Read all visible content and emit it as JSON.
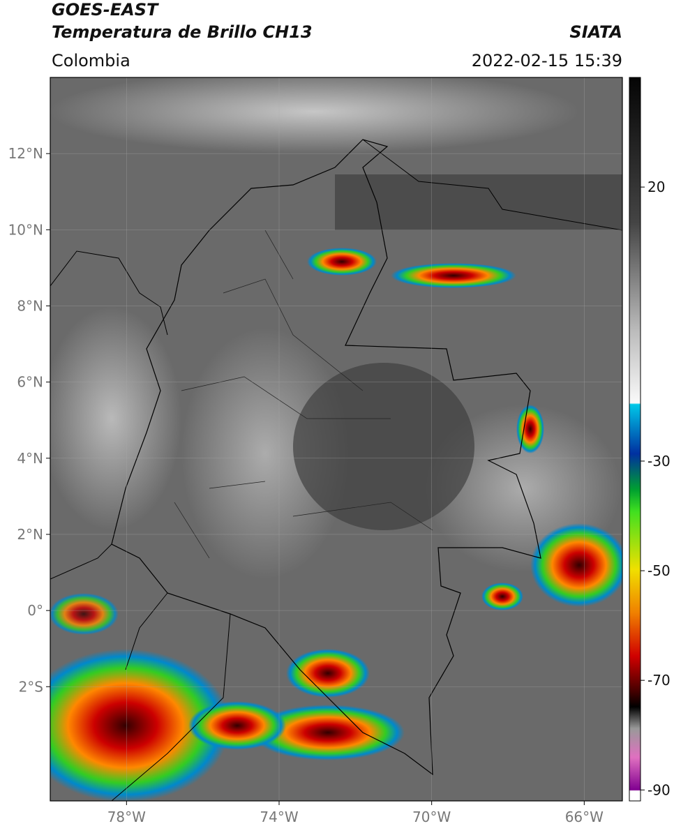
{
  "header": {
    "title_line_1": "GOES-EAST",
    "title_line_2": "Temperatura de Brillo CH13",
    "region": "Colombia",
    "source": "SIATA",
    "datetime": "2022-02-15 15:39"
  },
  "map": {
    "lonlim": [
      -80,
      -65
    ],
    "latlim": [
      -5,
      14
    ],
    "lon_ticks": [
      {
        "value": -78,
        "label": "78°W"
      },
      {
        "value": -74,
        "label": "74°W"
      },
      {
        "value": -70,
        "label": "70°W"
      },
      {
        "value": -66,
        "label": "66°W"
      }
    ],
    "lat_ticks": [
      {
        "value": 12,
        "label": "12°N"
      },
      {
        "value": 10,
        "label": "10°N"
      },
      {
        "value": 8,
        "label": "8°N"
      },
      {
        "value": 6,
        "label": "6°N"
      },
      {
        "value": 4,
        "label": "4°N"
      },
      {
        "value": 2,
        "label": "2°N"
      },
      {
        "value": 0,
        "label": "0°"
      },
      {
        "value": -2,
        "label": "2°S"
      }
    ],
    "grid": true
  },
  "colorbar": {
    "clim": [
      -92,
      40
    ],
    "ticks": [
      20,
      -30,
      -50,
      -70,
      -90
    ]
  }
}
